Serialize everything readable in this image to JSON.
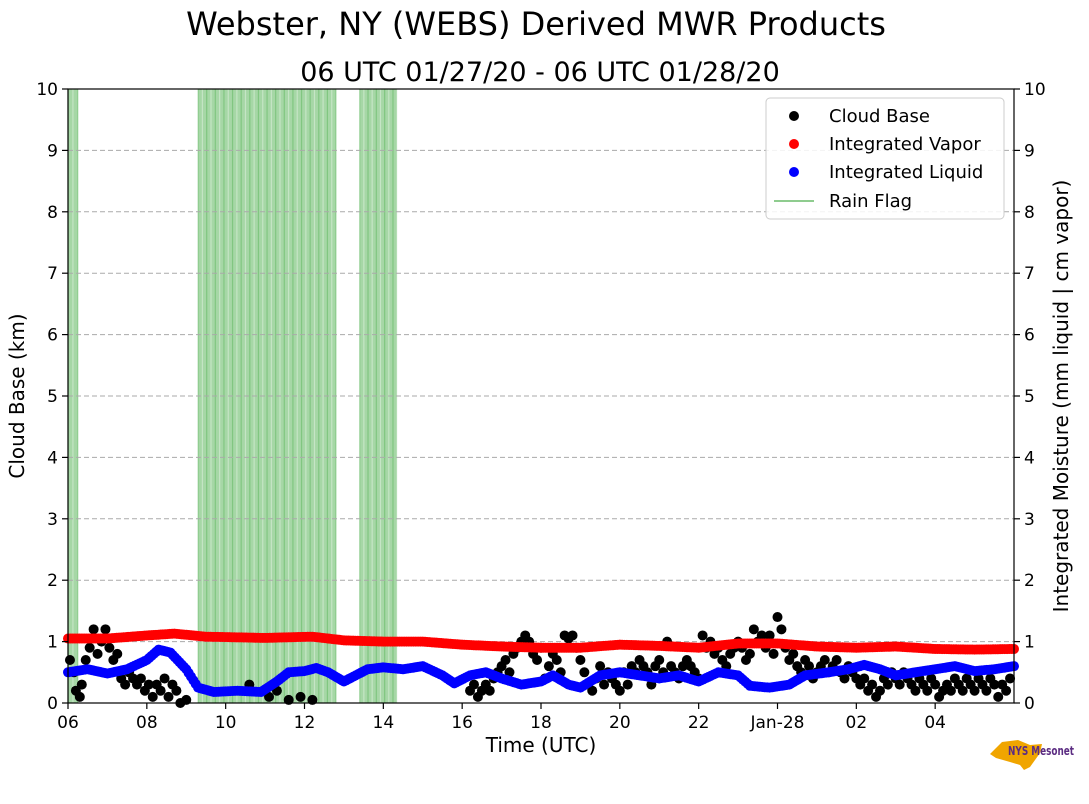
{
  "title": "Webster, NY (WEBS) Derived MWR Products",
  "subtitle": "06 UTC 01/27/20 - 06 UTC 01/28/20",
  "logo_text": "NYS Mesonet",
  "chart_data": {
    "type": "scatter",
    "title": "Webster, NY (WEBS) Derived MWR Products",
    "subtitle": "06 UTC 01/27/20 - 06 UTC 01/28/20",
    "xlabel": "Time (UTC)",
    "ylabel": "Cloud Base (km)",
    "y2label": "Integrated Moisture (mm liquid | cm vapor)",
    "xlim_hours": [
      0,
      24
    ],
    "ylim": [
      0,
      10
    ],
    "y2lim": [
      0,
      10
    ],
    "grid": true,
    "legend_position": "top-right",
    "x_ticks": [
      {
        "hour": 0,
        "label": "06"
      },
      {
        "hour": 2,
        "label": "08"
      },
      {
        "hour": 4,
        "label": "10"
      },
      {
        "hour": 6,
        "label": "12"
      },
      {
        "hour": 8,
        "label": "14"
      },
      {
        "hour": 10,
        "label": "16"
      },
      {
        "hour": 12,
        "label": "18"
      },
      {
        "hour": 14,
        "label": "20"
      },
      {
        "hour": 16,
        "label": "22"
      },
      {
        "hour": 18,
        "label": "Jan-28"
      },
      {
        "hour": 20,
        "label": "02"
      },
      {
        "hour": 22,
        "label": "04"
      }
    ],
    "y_ticks": [
      0,
      1,
      2,
      3,
      4,
      5,
      6,
      7,
      8,
      9,
      10
    ],
    "series": [
      {
        "name": "Cloud Base",
        "color": "#000000",
        "kind": "scatter",
        "points": [
          [
            0.05,
            0.7
          ],
          [
            0.15,
            0.5
          ],
          [
            0.2,
            0.2
          ],
          [
            0.3,
            0.1
          ],
          [
            0.35,
            0.3
          ],
          [
            0.45,
            0.7
          ],
          [
            0.55,
            0.9
          ],
          [
            0.65,
            1.2
          ],
          [
            0.75,
            0.8
          ],
          [
            0.85,
            1.0
          ],
          [
            0.95,
            1.2
          ],
          [
            1.05,
            0.9
          ],
          [
            1.15,
            0.7
          ],
          [
            1.25,
            0.8
          ],
          [
            1.35,
            0.4
          ],
          [
            1.45,
            0.3
          ],
          [
            1.55,
            0.5
          ],
          [
            1.65,
            0.4
          ],
          [
            1.75,
            0.3
          ],
          [
            1.85,
            0.4
          ],
          [
            1.95,
            0.2
          ],
          [
            2.05,
            0.3
          ],
          [
            2.15,
            0.1
          ],
          [
            2.25,
            0.3
          ],
          [
            2.35,
            0.2
          ],
          [
            2.45,
            0.4
          ],
          [
            2.55,
            0.1
          ],
          [
            2.65,
            0.3
          ],
          [
            2.75,
            0.2
          ],
          [
            2.85,
            0.0
          ],
          [
            3.0,
            0.05
          ],
          [
            4.6,
            0.3
          ],
          [
            5.1,
            0.1
          ],
          [
            5.3,
            0.2
          ],
          [
            5.6,
            0.05
          ],
          [
            5.9,
            0.1
          ],
          [
            6.2,
            0.05
          ],
          [
            10.2,
            0.2
          ],
          [
            10.3,
            0.3
          ],
          [
            10.4,
            0.1
          ],
          [
            10.5,
            0.2
          ],
          [
            10.6,
            0.3
          ],
          [
            10.7,
            0.2
          ],
          [
            10.8,
            0.4
          ],
          [
            10.9,
            0.5
          ],
          [
            11.0,
            0.6
          ],
          [
            11.1,
            0.7
          ],
          [
            11.2,
            0.5
          ],
          [
            11.3,
            0.8
          ],
          [
            11.4,
            0.9
          ],
          [
            11.5,
            1.0
          ],
          [
            11.6,
            1.1
          ],
          [
            11.7,
            1.0
          ],
          [
            11.8,
            0.8
          ],
          [
            11.9,
            0.7
          ],
          [
            12.0,
            0.9
          ],
          [
            12.1,
            0.4
          ],
          [
            12.2,
            0.6
          ],
          [
            12.3,
            0.8
          ],
          [
            12.4,
            0.7
          ],
          [
            12.5,
            0.5
          ],
          [
            12.6,
            1.1
          ],
          [
            12.7,
            1.05
          ],
          [
            12.8,
            1.1
          ],
          [
            12.9,
            0.9
          ],
          [
            13.0,
            0.7
          ],
          [
            13.1,
            0.5
          ],
          [
            13.2,
            0.3
          ],
          [
            13.3,
            0.2
          ],
          [
            13.4,
            0.4
          ],
          [
            13.5,
            0.6
          ],
          [
            13.6,
            0.3
          ],
          [
            13.7,
            0.5
          ],
          [
            13.8,
            0.4
          ],
          [
            13.9,
            0.3
          ],
          [
            14.0,
            0.2
          ],
          [
            14.1,
            0.5
          ],
          [
            14.2,
            0.3
          ],
          [
            14.3,
            0.6
          ],
          [
            14.4,
            0.5
          ],
          [
            14.5,
            0.7
          ],
          [
            14.6,
            0.6
          ],
          [
            14.7,
            0.5
          ],
          [
            14.8,
            0.3
          ],
          [
            14.9,
            0.6
          ],
          [
            15.0,
            0.7
          ],
          [
            15.1,
            0.5
          ],
          [
            15.2,
            1.0
          ],
          [
            15.3,
            0.6
          ],
          [
            15.4,
            0.5
          ],
          [
            15.5,
            0.4
          ],
          [
            15.6,
            0.6
          ],
          [
            15.7,
            0.7
          ],
          [
            15.8,
            0.6
          ],
          [
            15.9,
            0.5
          ],
          [
            16.0,
            0.4
          ],
          [
            16.1,
            1.1
          ],
          [
            16.2,
            0.9
          ],
          [
            16.3,
            1.0
          ],
          [
            16.4,
            0.8
          ],
          [
            16.5,
            0.9
          ],
          [
            16.6,
            0.7
          ],
          [
            16.7,
            0.6
          ],
          [
            16.8,
            0.8
          ],
          [
            16.9,
            0.9
          ],
          [
            17.0,
            1.0
          ],
          [
            17.1,
            0.9
          ],
          [
            17.2,
            0.7
          ],
          [
            17.3,
            0.8
          ],
          [
            17.4,
            1.2
          ],
          [
            17.5,
            1.0
          ],
          [
            17.6,
            1.1
          ],
          [
            17.7,
            0.9
          ],
          [
            17.8,
            1.1
          ],
          [
            17.9,
            0.8
          ],
          [
            18.0,
            1.4
          ],
          [
            18.1,
            1.2
          ],
          [
            18.2,
            0.9
          ],
          [
            18.3,
            0.7
          ],
          [
            18.4,
            0.8
          ],
          [
            18.5,
            0.6
          ],
          [
            18.6,
            0.5
          ],
          [
            18.7,
            0.7
          ],
          [
            18.8,
            0.6
          ],
          [
            18.9,
            0.4
          ],
          [
            19.0,
            0.5
          ],
          [
            19.1,
            0.6
          ],
          [
            19.2,
            0.7
          ],
          [
            19.3,
            0.5
          ],
          [
            19.4,
            0.6
          ],
          [
            19.5,
            0.7
          ],
          [
            19.6,
            0.5
          ],
          [
            19.7,
            0.4
          ],
          [
            19.8,
            0.6
          ],
          [
            19.9,
            0.5
          ],
          [
            20.0,
            0.4
          ],
          [
            20.1,
            0.3
          ],
          [
            20.2,
            0.4
          ],
          [
            20.3,
            0.2
          ],
          [
            20.4,
            0.3
          ],
          [
            20.5,
            0.1
          ],
          [
            20.6,
            0.2
          ],
          [
            20.7,
            0.4
          ],
          [
            20.8,
            0.3
          ],
          [
            20.9,
            0.5
          ],
          [
            21.0,
            0.4
          ],
          [
            21.1,
            0.3
          ],
          [
            21.2,
            0.5
          ],
          [
            21.3,
            0.4
          ],
          [
            21.4,
            0.3
          ],
          [
            21.5,
            0.2
          ],
          [
            21.6,
            0.4
          ],
          [
            21.7,
            0.3
          ],
          [
            21.8,
            0.2
          ],
          [
            21.9,
            0.4
          ],
          [
            22.0,
            0.3
          ],
          [
            22.1,
            0.1
          ],
          [
            22.2,
            0.2
          ],
          [
            22.3,
            0.3
          ],
          [
            22.4,
            0.2
          ],
          [
            22.5,
            0.4
          ],
          [
            22.6,
            0.3
          ],
          [
            22.7,
            0.2
          ],
          [
            22.8,
            0.4
          ],
          [
            22.9,
            0.3
          ],
          [
            23.0,
            0.2
          ],
          [
            23.1,
            0.4
          ],
          [
            23.2,
            0.3
          ],
          [
            23.3,
            0.2
          ],
          [
            23.4,
            0.4
          ],
          [
            23.5,
            0.3
          ],
          [
            23.6,
            0.1
          ],
          [
            23.7,
            0.3
          ],
          [
            23.8,
            0.2
          ],
          [
            23.9,
            0.4
          ]
        ]
      },
      {
        "name": "Integrated Vapor",
        "color": "#ff0000",
        "kind": "scatter_line",
        "points": [
          [
            0,
            1.05
          ],
          [
            1,
            1.05
          ],
          [
            2,
            1.1
          ],
          [
            2.7,
            1.13
          ],
          [
            3.5,
            1.08
          ],
          [
            5,
            1.06
          ],
          [
            6.2,
            1.08
          ],
          [
            7,
            1.02
          ],
          [
            8,
            1.0
          ],
          [
            9,
            1.0
          ],
          [
            10,
            0.95
          ],
          [
            11,
            0.92
          ],
          [
            12,
            0.9
          ],
          [
            13,
            0.9
          ],
          [
            14,
            0.95
          ],
          [
            15,
            0.93
          ],
          [
            16,
            0.9
          ],
          [
            17,
            0.97
          ],
          [
            18,
            0.97
          ],
          [
            19,
            0.92
          ],
          [
            20,
            0.9
          ],
          [
            21,
            0.92
          ],
          [
            22,
            0.88
          ],
          [
            23,
            0.87
          ],
          [
            24,
            0.88
          ]
        ]
      },
      {
        "name": "Integrated Liquid",
        "color": "#0000ff",
        "kind": "scatter_line",
        "points": [
          [
            0,
            0.5
          ],
          [
            0.5,
            0.55
          ],
          [
            1,
            0.48
          ],
          [
            1.5,
            0.55
          ],
          [
            2,
            0.7
          ],
          [
            2.3,
            0.87
          ],
          [
            2.6,
            0.82
          ],
          [
            3,
            0.55
          ],
          [
            3.3,
            0.25
          ],
          [
            3.7,
            0.18
          ],
          [
            4.3,
            0.2
          ],
          [
            4.9,
            0.18
          ],
          [
            5.3,
            0.35
          ],
          [
            5.6,
            0.5
          ],
          [
            6,
            0.52
          ],
          [
            6.3,
            0.57
          ],
          [
            6.6,
            0.5
          ],
          [
            7,
            0.35
          ],
          [
            7.3,
            0.45
          ],
          [
            7.6,
            0.55
          ],
          [
            8,
            0.58
          ],
          [
            8.5,
            0.55
          ],
          [
            9,
            0.6
          ],
          [
            9.5,
            0.45
          ],
          [
            9.8,
            0.32
          ],
          [
            10.2,
            0.45
          ],
          [
            10.6,
            0.5
          ],
          [
            11,
            0.4
          ],
          [
            11.5,
            0.3
          ],
          [
            12,
            0.35
          ],
          [
            12.3,
            0.45
          ],
          [
            12.7,
            0.3
          ],
          [
            13,
            0.25
          ],
          [
            13.5,
            0.45
          ],
          [
            14,
            0.5
          ],
          [
            14.5,
            0.45
          ],
          [
            15,
            0.4
          ],
          [
            15.5,
            0.45
          ],
          [
            16,
            0.35
          ],
          [
            16.5,
            0.5
          ],
          [
            17,
            0.45
          ],
          [
            17.3,
            0.28
          ],
          [
            17.8,
            0.25
          ],
          [
            18.3,
            0.3
          ],
          [
            18.7,
            0.45
          ],
          [
            19.3,
            0.5
          ],
          [
            19.8,
            0.55
          ],
          [
            20.2,
            0.62
          ],
          [
            20.6,
            0.55
          ],
          [
            21,
            0.45
          ],
          [
            21.5,
            0.5
          ],
          [
            22,
            0.55
          ],
          [
            22.5,
            0.6
          ],
          [
            23,
            0.52
          ],
          [
            23.5,
            0.55
          ],
          [
            24,
            0.6
          ]
        ]
      },
      {
        "name": "Rain Flag",
        "color": "#2ca02c",
        "kind": "span",
        "spans": [
          [
            0.0,
            0.25
          ],
          [
            3.3,
            6.8
          ],
          [
            7.4,
            8.35
          ]
        ]
      }
    ]
  }
}
